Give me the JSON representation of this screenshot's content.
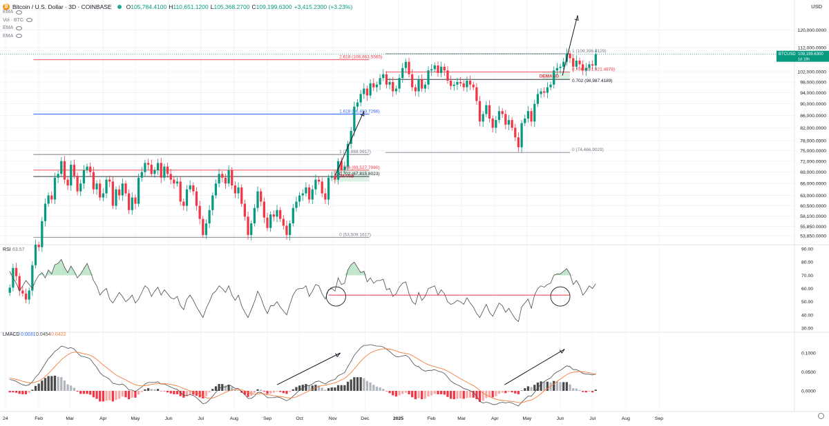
{
  "header": {
    "symbol_title": "Bitcoin / U.S. Dollar · 3D · COINBASE",
    "ohlc": [
      {
        "k": "O",
        "v": "105,784.4100"
      },
      {
        "k": "H",
        "v": "110,651.1200"
      },
      {
        "k": "L",
        "v": "105,368.2700"
      },
      {
        "k": "C",
        "v": "109,199.6300"
      },
      {
        "k": "",
        "v": "+3,415.2300 (+3.23%)"
      }
    ],
    "indicators": [
      "EMA",
      "Vol · BTC",
      "EMA",
      "EMA"
    ]
  },
  "currency": "USD",
  "last_price": {
    "symbol": "BTCUSD",
    "value": "109,199.6300",
    "countdown": "1d 18h"
  },
  "colors": {
    "up": "#089981",
    "down": "#f23645",
    "fib_red": "#f23645",
    "fib_blue": "#2962ff",
    "fib_gray": "#787b86",
    "macd_signal": "#f57c3a",
    "grid": "#f0f3fa"
  },
  "price_axis": {
    "scale": "log",
    "range": [
      52000,
      132000
    ],
    "ticks": [
      "120,000.0000",
      "112,000.0000",
      "102,000.0000",
      "98,000.0000",
      "94,000.0000",
      "90,000.0000",
      "86,000.0000",
      "82,000.0000",
      "78,000.0000",
      "75,000.0000",
      "72,000.0000",
      "69,000.0000",
      "66,000.0000",
      "63,000.0000",
      "60,500.0000",
      "58,100.0000",
      "55,850.0000",
      "53,850.0000"
    ]
  },
  "time_axis": {
    "labels": [
      "24",
      "Feb",
      "Mar",
      "Apr",
      "May",
      "Jun",
      "Jul",
      "Aug",
      "Sep",
      "Oct",
      "Nov",
      "Dec",
      "2025",
      "Feb",
      "Mar",
      "Apr",
      "May",
      "Jun",
      "Jul",
      "Aug",
      "Sep"
    ]
  },
  "chart_data": [
    {
      "type": "candlestick",
      "title": "Bitcoin / U.S. Dollar · 3D · COINBASE",
      "x_range": [
        "2024-01",
        "2025-09"
      ],
      "yscale": "log",
      "closes": [
        44000,
        47500,
        46000,
        43500,
        43000,
        42000,
        43500,
        48000,
        52000,
        51500,
        57000,
        61000,
        63000,
        62000,
        67500,
        68500,
        72000,
        67000,
        65500,
        71000,
        68000,
        64000,
        66000,
        69500,
        70500,
        69000,
        64500,
        66000,
        62500,
        63500,
        67000,
        66500,
        60500,
        64500,
        63000,
        66000,
        63500,
        59500,
        62500,
        61000,
        67500,
        69000,
        71500,
        71000,
        68500,
        69500,
        71500,
        67500,
        70500,
        68500,
        67000,
        66000,
        66500,
        61500,
        60500,
        64500,
        65500,
        64000,
        60500,
        57500,
        54000,
        56500,
        59500,
        63000,
        66000,
        68500,
        67500,
        66000,
        69500,
        65500,
        63500,
        65000,
        61000,
        58000,
        54000,
        56500,
        60000,
        64000,
        61500,
        57800,
        55500,
        58500,
        58000,
        59500,
        57500,
        56000,
        54000,
        56500,
        60000,
        61500,
        63000,
        63500,
        65000,
        62000,
        64500,
        67000,
        66500,
        63500,
        62000,
        67500,
        68000,
        67000,
        72000,
        69500,
        70500,
        77000,
        81000,
        89000,
        90500,
        93500,
        95500,
        93000,
        97500,
        96000,
        97000,
        99500,
        101000,
        97000,
        98000,
        94500,
        95500,
        99500,
        103500,
        106000,
        101000,
        96000,
        94500,
        99000,
        95500,
        97000,
        102500,
        103000,
        104500,
        101500,
        104000,
        102500,
        98500,
        96500,
        97000,
        98000,
        97500,
        96000,
        98500,
        97000,
        96000,
        91000,
        84000,
        86500,
        89500,
        85000,
        82000,
        84500,
        87500,
        86500,
        83000,
        84500,
        82000,
        79000,
        76000,
        83500,
        85000,
        87500,
        84000,
        90000,
        93500,
        94500,
        94000,
        96000,
        97000,
        102500,
        103500,
        104000,
        106000,
        109500,
        107500,
        104000,
        106500,
        105000,
        102500,
        103500,
        105000,
        104500,
        109199
      ]
    },
    {
      "type": "fibonacci_retracement",
      "levels": [
        {
          "label": "2.618 (106,863.5565)",
          "price": 106863.5565
        },
        {
          "label": "1.618 (86,483.7266)",
          "price": 86483.7266
        },
        {
          "label": "1 (73,888.9917)",
          "price": 73888.9917
        },
        {
          "label": "0.786 (69,527.7080)",
          "price": 69527.708
        },
        {
          "label": "0.702 (67,815.8023)",
          "price": 67815.8023
        },
        {
          "label": "0 (53,509.1617)",
          "price": 53509.1617
        }
      ]
    },
    {
      "type": "fibonacci_retracement",
      "levels": [
        {
          "label": "1 (109,396.4129)",
          "price": 109396.4129
        },
        {
          "label": "0.786 (101,921.4878)",
          "price": 101921.4878
        },
        {
          "label": "0.702 (98,987.4189)",
          "price": 98987.4189
        },
        {
          "label": "0 (74,466.9029)",
          "price": 74466.9029
        }
      ]
    },
    {
      "type": "zones",
      "items": [
        {
          "label": "DEMAND",
          "from_date": "2024-11-01",
          "to_date": "2024-12-05",
          "low": 66500,
          "high": 69500
        },
        {
          "label": "DEMAND",
          "from_date": "2025-05-15",
          "to_date": "2025-06-10",
          "low": 98987,
          "high": 101921
        }
      ]
    },
    {
      "type": "line",
      "title": "RSI",
      "legend": "RSI 63.57",
      "ylim": [
        30,
        90
      ],
      "ticks": [
        "90.00",
        "80.00",
        "70.00",
        "60.00",
        "50.00",
        "40.00",
        "30.00"
      ],
      "values": [
        73,
        68,
        64,
        58,
        62,
        66,
        63,
        60,
        66,
        70,
        72,
        68,
        74,
        71,
        78,
        79,
        82,
        76,
        72,
        77,
        73,
        68,
        71,
        75,
        79,
        73,
        66,
        62,
        55,
        58,
        60,
        52,
        49,
        53,
        57,
        54,
        50,
        52,
        55,
        49,
        52,
        57,
        62,
        60,
        54,
        58,
        61,
        55,
        59,
        56,
        53,
        52,
        54,
        47,
        44,
        52,
        55,
        51,
        46,
        42,
        38,
        45,
        50,
        56,
        58,
        62,
        60,
        57,
        62,
        55,
        51,
        55,
        47,
        42,
        38,
        44,
        50,
        58,
        53,
        46,
        41,
        47,
        47,
        50,
        46,
        43,
        40,
        48,
        55,
        59,
        60,
        60,
        62,
        54,
        58,
        63,
        62,
        56,
        52,
        59,
        60,
        58,
        68,
        63,
        64,
        74,
        78,
        80,
        76,
        72,
        73,
        65,
        68,
        64,
        66,
        66,
        67,
        59,
        60,
        54,
        56,
        61,
        64,
        65,
        56,
        50,
        48,
        57,
        51,
        54,
        60,
        61,
        62,
        55,
        59,
        56,
        50,
        48,
        49,
        51,
        50,
        48,
        53,
        49,
        46,
        41,
        38,
        43,
        48,
        42,
        39,
        44,
        49,
        47,
        42,
        45,
        41,
        37,
        35,
        46,
        49,
        52,
        45,
        55,
        60,
        62,
        61,
        63,
        64,
        70,
        71,
        71,
        73,
        75,
        71,
        63,
        66,
        62,
        55,
        58,
        62,
        60,
        63.57
      ],
      "hline": 55,
      "hline_label": "",
      "circles": [
        {
          "date": "2024-11-04",
          "value": 55
        },
        {
          "date": "2025-06-01",
          "value": 55
        }
      ]
    },
    {
      "type": "macd",
      "title": "LMACD",
      "legend": [
        "0.0031",
        "0.0454",
        "0.0422"
      ],
      "ylim": [
        -0.04,
        0.14
      ],
      "ticks": [
        "0.1000",
        "0.0500",
        "0.0000"
      ],
      "macd": [
        0.03,
        0.028,
        0.025,
        0.02,
        0.016,
        0.014,
        0.016,
        0.024,
        0.036,
        0.045,
        0.058,
        0.072,
        0.085,
        0.094,
        0.104,
        0.11,
        0.118,
        0.116,
        0.112,
        0.114,
        0.11,
        0.1,
        0.092,
        0.09,
        0.088,
        0.084,
        0.072,
        0.062,
        0.048,
        0.04,
        0.036,
        0.03,
        0.02,
        0.018,
        0.016,
        0.018,
        0.012,
        0.002,
        0.002,
        -0.002,
        0.004,
        0.01,
        0.018,
        0.022,
        0.022,
        0.022,
        0.024,
        0.018,
        0.018,
        0.014,
        0.01,
        0.006,
        0.004,
        -0.004,
        -0.012,
        -0.012,
        -0.01,
        -0.012,
        -0.018,
        -0.026,
        -0.034,
        -0.032,
        -0.024,
        -0.014,
        -0.004,
        0.006,
        0.01,
        0.01,
        0.016,
        0.012,
        0.006,
        0.006,
        -0.002,
        -0.01,
        -0.02,
        -0.02,
        -0.014,
        -0.004,
        -0.004,
        -0.01,
        -0.018,
        -0.018,
        -0.018,
        -0.016,
        -0.018,
        -0.022,
        -0.026,
        -0.022,
        -0.014,
        -0.006,
        0.002,
        0.008,
        0.014,
        0.014,
        0.018,
        0.024,
        0.026,
        0.022,
        0.018,
        0.024,
        0.028,
        0.03,
        0.04,
        0.044,
        0.048,
        0.064,
        0.078,
        0.094,
        0.104,
        0.114,
        0.12,
        0.12,
        0.122,
        0.12,
        0.118,
        0.118,
        0.116,
        0.11,
        0.104,
        0.096,
        0.09,
        0.09,
        0.092,
        0.094,
        0.088,
        0.076,
        0.066,
        0.064,
        0.056,
        0.052,
        0.054,
        0.054,
        0.056,
        0.052,
        0.05,
        0.046,
        0.036,
        0.026,
        0.02,
        0.016,
        0.012,
        0.006,
        0.004,
        0.0,
        -0.004,
        -0.014,
        -0.028,
        -0.032,
        -0.03,
        -0.032,
        -0.036,
        -0.036,
        -0.032,
        -0.03,
        -0.032,
        -0.03,
        -0.032,
        -0.036,
        -0.04,
        -0.03,
        -0.022,
        -0.014,
        -0.014,
        -0.004,
        0.008,
        0.018,
        0.024,
        0.03,
        0.034,
        0.044,
        0.05,
        0.054,
        0.06,
        0.066,
        0.064,
        0.056,
        0.056,
        0.052,
        0.046,
        0.044,
        0.044,
        0.042,
        0.0454
      ],
      "signal": [
        0.034,
        0.032,
        0.03,
        0.028,
        0.025,
        0.023,
        0.021,
        0.021,
        0.023,
        0.026,
        0.031,
        0.038,
        0.046,
        0.055,
        0.064,
        0.073,
        0.082,
        0.089,
        0.095,
        0.1,
        0.102,
        0.102,
        0.1,
        0.098,
        0.096,
        0.094,
        0.089,
        0.083,
        0.076,
        0.068,
        0.062,
        0.055,
        0.048,
        0.042,
        0.037,
        0.033,
        0.029,
        0.024,
        0.02,
        0.016,
        0.014,
        0.013,
        0.014,
        0.015,
        0.017,
        0.018,
        0.019,
        0.019,
        0.019,
        0.018,
        0.017,
        0.015,
        0.013,
        0.01,
        0.006,
        0.003,
        0.0,
        -0.002,
        -0.005,
        -0.009,
        -0.014,
        -0.018,
        -0.02,
        -0.019,
        -0.016,
        -0.012,
        -0.008,
        -0.004,
        0.0,
        0.002,
        0.003,
        0.004,
        0.003,
        0.0,
        -0.004,
        -0.007,
        -0.009,
        -0.008,
        -0.007,
        -0.008,
        -0.01,
        -0.011,
        -0.013,
        -0.014,
        -0.015,
        -0.016,
        -0.018,
        -0.019,
        -0.018,
        -0.016,
        -0.012,
        -0.008,
        -0.004,
        0.0,
        0.004,
        0.008,
        0.012,
        0.014,
        0.015,
        0.017,
        0.019,
        0.021,
        0.025,
        0.029,
        0.033,
        0.04,
        0.048,
        0.058,
        0.068,
        0.078,
        0.087,
        0.094,
        0.1,
        0.104,
        0.107,
        0.109,
        0.111,
        0.111,
        0.11,
        0.108,
        0.105,
        0.102,
        0.1,
        0.099,
        0.097,
        0.093,
        0.088,
        0.083,
        0.078,
        0.073,
        0.069,
        0.066,
        0.064,
        0.061,
        0.059,
        0.056,
        0.052,
        0.047,
        0.042,
        0.037,
        0.032,
        0.027,
        0.023,
        0.018,
        0.014,
        0.008,
        0.001,
        -0.006,
        -0.011,
        -0.015,
        -0.019,
        -0.022,
        -0.024,
        -0.025,
        -0.026,
        -0.027,
        -0.028,
        -0.029,
        -0.031,
        -0.031,
        -0.029,
        -0.026,
        -0.024,
        -0.02,
        -0.014,
        -0.007,
        0.0,
        0.006,
        0.012,
        0.018,
        0.025,
        0.031,
        0.037,
        0.043,
        0.047,
        0.049,
        0.05,
        0.051,
        0.05,
        0.049,
        0.048,
        0.046,
        0.0422
      ],
      "histogram": [
        -0.004,
        -0.004,
        -0.005,
        -0.008,
        -0.009,
        -0.009,
        -0.005,
        0.003,
        0.013,
        0.019,
        0.027,
        0.034,
        0.039,
        0.039,
        0.04,
        0.037,
        0.036,
        0.027,
        0.017,
        0.014,
        0.008,
        -0.002,
        -0.008,
        -0.008,
        -0.008,
        -0.01,
        -0.017,
        -0.021,
        -0.028,
        -0.028,
        -0.026,
        -0.025,
        -0.028,
        -0.024,
        -0.021,
        -0.015,
        -0.017,
        -0.022,
        -0.018,
        -0.018,
        -0.01,
        -0.003,
        0.004,
        0.007,
        0.005,
        0.004,
        0.005,
        -0.001,
        -0.001,
        -0.004,
        -0.007,
        -0.009,
        -0.009,
        -0.014,
        -0.018,
        -0.015,
        -0.01,
        -0.01,
        -0.013,
        -0.017,
        -0.02,
        -0.014,
        -0.004,
        0.005,
        0.012,
        0.018,
        0.018,
        0.014,
        0.016,
        0.01,
        0.003,
        0.002,
        -0.005,
        -0.01,
        -0.016,
        -0.013,
        -0.005,
        0.004,
        0.003,
        -0.002,
        -0.008,
        -0.007,
        -0.005,
        -0.002,
        -0.003,
        -0.006,
        -0.008,
        -0.003,
        0.004,
        0.01,
        0.014,
        0.016,
        0.018,
        0.014,
        0.014,
        0.016,
        0.014,
        0.008,
        0.003,
        0.007,
        0.009,
        0.009,
        0.015,
        0.015,
        0.015,
        0.024,
        0.03,
        0.036,
        0.036,
        0.036,
        0.033,
        0.026,
        0.022,
        0.016,
        0.011,
        0.009,
        0.005,
        -0.001,
        -0.006,
        -0.012,
        -0.015,
        -0.012,
        -0.008,
        -0.005,
        -0.009,
        -0.017,
        -0.022,
        -0.019,
        -0.022,
        -0.021,
        -0.015,
        -0.012,
        -0.008,
        -0.009,
        -0.009,
        -0.01,
        -0.016,
        -0.021,
        -0.022,
        -0.021,
        -0.02,
        -0.021,
        -0.019,
        -0.018,
        -0.018,
        -0.022,
        -0.029,
        -0.026,
        -0.019,
        -0.017,
        -0.017,
        -0.014,
        -0.008,
        -0.005,
        -0.006,
        -0.003,
        -0.004,
        -0.007,
        -0.009,
        0.001,
        0.007,
        0.012,
        0.01,
        0.016,
        0.022,
        0.025,
        0.024,
        0.024,
        0.022,
        0.026,
        0.025,
        0.023,
        0.023,
        0.023,
        0.017,
        0.007,
        0.006,
        0.002,
        -0.003,
        -0.004,
        -0.002,
        -0.004,
        0.0031
      ]
    },
    {
      "type": "annotations",
      "arrows": [
        {
          "pane": "price",
          "from": [
            "2024-11-03",
            68000
          ],
          "to": [
            "2024-11-30",
            87500
          ]
        },
        {
          "pane": "price",
          "from": [
            "2025-06-03",
            100500
          ],
          "to": [
            "2025-06-17",
            127000
          ]
        },
        {
          "pane": "macd",
          "from": [
            "2024-09-10",
            0.016
          ],
          "to": [
            "2024-11-08",
            0.1
          ]
        },
        {
          "pane": "macd",
          "from": [
            "2025-04-10",
            0.016
          ],
          "to": [
            "2025-06-05",
            0.11
          ]
        }
      ]
    }
  ]
}
